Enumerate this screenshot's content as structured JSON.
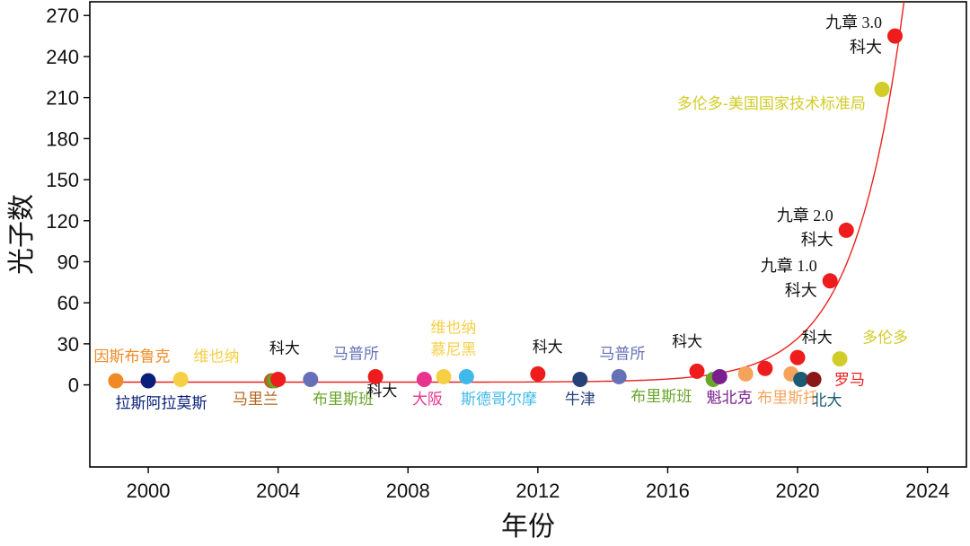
{
  "chart_data": {
    "type": "scatter",
    "xlabel": "年份",
    "ylabel": "光子数",
    "xlim": [
      1998.2,
      2025.2
    ],
    "ylim": [
      -60,
      280
    ],
    "x_ticks": [
      2000,
      2004,
      2008,
      2012,
      2016,
      2020,
      2024
    ],
    "y_ticks": [
      0,
      30,
      60,
      90,
      120,
      150,
      180,
      210,
      240,
      270
    ],
    "x_tick_labels": [
      "2000",
      "2004",
      "2008",
      "2012",
      "2016",
      "2020",
      "2024"
    ],
    "y_tick_labels": [
      "0",
      "30",
      "60",
      "90",
      "120",
      "150",
      "180",
      "210",
      "240",
      "270"
    ],
    "grid": false,
    "fit_curve": {
      "color": "#e8231f",
      "baseline": 2,
      "scale": 2.0,
      "rate": 0.66,
      "x_ref": 2015.8
    },
    "points": [
      {
        "x": 1999.0,
        "y": 3,
        "color": "#f08a24"
      },
      {
        "x": 2000.0,
        "y": 3,
        "color": "#0a1f7a"
      },
      {
        "x": 2001.0,
        "y": 4,
        "color": "#f7cf45"
      },
      {
        "x": 2003.8,
        "y": 3,
        "color": "#b5651d"
      },
      {
        "x": 2003.9,
        "y": 3,
        "color": "#6aa62a"
      },
      {
        "x": 2004.0,
        "y": 4,
        "color": "#ee1c1c"
      },
      {
        "x": 2005.0,
        "y": 4,
        "color": "#6670b8"
      },
      {
        "x": 2007.0,
        "y": 6,
        "color": "#ee1c1c"
      },
      {
        "x": 2008.5,
        "y": 4,
        "color": "#e8348e"
      },
      {
        "x": 2009.1,
        "y": 6,
        "color": "#f7cf45"
      },
      {
        "x": 2009.8,
        "y": 6,
        "color": "#3fb8ec"
      },
      {
        "x": 2012.0,
        "y": 8,
        "color": "#ee1c1c"
      },
      {
        "x": 2013.3,
        "y": 4,
        "color": "#26407a"
      },
      {
        "x": 2014.5,
        "y": 6,
        "color": "#6670b8"
      },
      {
        "x": 2016.9,
        "y": 10,
        "color": "#ee1c1c"
      },
      {
        "x": 2017.4,
        "y": 4,
        "color": "#6aa62a"
      },
      {
        "x": 2017.6,
        "y": 6,
        "color": "#7a1f8e"
      },
      {
        "x": 2018.4,
        "y": 8,
        "color": "#f5a35a"
      },
      {
        "x": 2019.0,
        "y": 12,
        "color": "#ee1c1c"
      },
      {
        "x": 2019.8,
        "y": 8,
        "color": "#f5a35a"
      },
      {
        "x": 2020.0,
        "y": 20,
        "color": "#ee1c1c"
      },
      {
        "x": 2020.1,
        "y": 4,
        "color": "#1a5a72"
      },
      {
        "x": 2020.5,
        "y": 4,
        "color": "#8a1818"
      },
      {
        "x": 2021.0,
        "y": 76,
        "color": "#ee1c1c"
      },
      {
        "x": 2021.3,
        "y": 19,
        "color": "#d2cc28"
      },
      {
        "x": 2021.5,
        "y": 113,
        "color": "#ee1c1c"
      },
      {
        "x": 2022.6,
        "y": 216,
        "color": "#d2cc28"
      },
      {
        "x": 2023.0,
        "y": 255,
        "color": "#ee1c1c"
      }
    ],
    "labels": [
      {
        "text": "因斯布鲁克",
        "x": 1999.5,
        "y": 17,
        "color": "#f08a24",
        "anchor": "middle",
        "cls": "pt-label"
      },
      {
        "text": "维也纳",
        "x": 2002.1,
        "y": 17,
        "color": "#f7cf45",
        "anchor": "middle",
        "cls": "pt-label"
      },
      {
        "text": "拉斯阿拉莫斯",
        "x": 2000.4,
        "y": -17,
        "color": "#0a1f7a",
        "anchor": "middle",
        "cls": "pt-label"
      },
      {
        "text": "科大",
        "x": 2004.2,
        "y": 23,
        "color": "#111111",
        "anchor": "middle",
        "cls": "pt-label"
      },
      {
        "text": "马普所",
        "x": 2006.4,
        "y": 19,
        "color": "#6670b8",
        "anchor": "middle",
        "cls": "pt-label"
      },
      {
        "text": "马里兰",
        "x": 2003.3,
        "y": -14,
        "color": "#b5651d",
        "anchor": "middle",
        "cls": "pt-label"
      },
      {
        "text": "布里斯班",
        "x": 2006.0,
        "y": -14,
        "color": "#6aa62a",
        "anchor": "middle",
        "cls": "pt-label"
      },
      {
        "text": "科大",
        "x": 2007.2,
        "y": -8,
        "color": "#111111",
        "anchor": "middle",
        "cls": "pt-label"
      },
      {
        "text": "维也纳",
        "x": 2009.4,
        "y": 38,
        "color": "#f7cf45",
        "anchor": "middle",
        "cls": "pt-label"
      },
      {
        "text": "慕尼黑",
        "x": 2009.4,
        "y": 22,
        "color": "#f7cf45",
        "anchor": "middle",
        "cls": "pt-label"
      },
      {
        "text": "大阪",
        "x": 2008.6,
        "y": -14,
        "color": "#e8348e",
        "anchor": "middle",
        "cls": "pt-label"
      },
      {
        "text": "斯德哥尔摩",
        "x": 2010.8,
        "y": -14,
        "color": "#3fb8ec",
        "anchor": "middle",
        "cls": "pt-label"
      },
      {
        "text": "科大",
        "x": 2012.3,
        "y": 24,
        "color": "#111111",
        "anchor": "middle",
        "cls": "pt-label"
      },
      {
        "text": "牛津",
        "x": 2013.3,
        "y": -14,
        "color": "#26407a",
        "anchor": "middle",
        "cls": "pt-label"
      },
      {
        "text": "马普所",
        "x": 2014.6,
        "y": 19,
        "color": "#6670b8",
        "anchor": "middle",
        "cls": "pt-label"
      },
      {
        "text": "科大",
        "x": 2016.6,
        "y": 28,
        "color": "#111111",
        "anchor": "middle",
        "cls": "pt-label"
      },
      {
        "text": "布里斯班",
        "x": 2015.8,
        "y": -12,
        "color": "#6aa62a",
        "anchor": "middle",
        "cls": "pt-label"
      },
      {
        "text": "魁北克",
        "x": 2017.9,
        "y": -13,
        "color": "#7a1f8e",
        "anchor": "middle",
        "cls": "pt-label"
      },
      {
        "text": "布里斯托",
        "x": 2019.7,
        "y": -13,
        "color": "#f5a35a",
        "anchor": "middle",
        "cls": "pt-label"
      },
      {
        "text": "北大",
        "x": 2020.9,
        "y": -15,
        "color": "#1a5a72",
        "anchor": "middle",
        "cls": "pt-label"
      },
      {
        "text": "罗马",
        "x": 2021.6,
        "y": 0,
        "color": "#ee1c1c",
        "anchor": "middle",
        "cls": "pt-label"
      },
      {
        "text": "科大",
        "x": 2020.6,
        "y": 31,
        "color": "#111111",
        "anchor": "middle",
        "cls": "pt-label"
      },
      {
        "text": "多伦多",
        "x": 2022.7,
        "y": 31,
        "color": "#d2cc28",
        "anchor": "middle",
        "cls": "pt-label"
      },
      {
        "text": "九章 1.0",
        "x": 2020.6,
        "y": 83,
        "color": "#111111",
        "anchor": "end",
        "cls": "ann-label"
      },
      {
        "text": "科大",
        "x": 2020.6,
        "y": 65,
        "color": "#111111",
        "anchor": "end",
        "cls": "ann-label"
      },
      {
        "text": "九章 2.0",
        "x": 2021.1,
        "y": 120,
        "color": "#111111",
        "anchor": "end",
        "cls": "ann-label"
      },
      {
        "text": "科大",
        "x": 2021.1,
        "y": 102,
        "color": "#111111",
        "anchor": "end",
        "cls": "ann-label"
      },
      {
        "text": "多伦多-美国国家技术标准局",
        "x": 2022.1,
        "y": 202,
        "color": "#d2cc28",
        "anchor": "end",
        "cls": "pt-label"
      },
      {
        "text": "九章 3.0",
        "x": 2022.6,
        "y": 261,
        "color": "#111111",
        "anchor": "end",
        "cls": "ann-label"
      },
      {
        "text": "科大",
        "x": 2022.6,
        "y": 243,
        "color": "#111111",
        "anchor": "end",
        "cls": "ann-label"
      }
    ]
  }
}
